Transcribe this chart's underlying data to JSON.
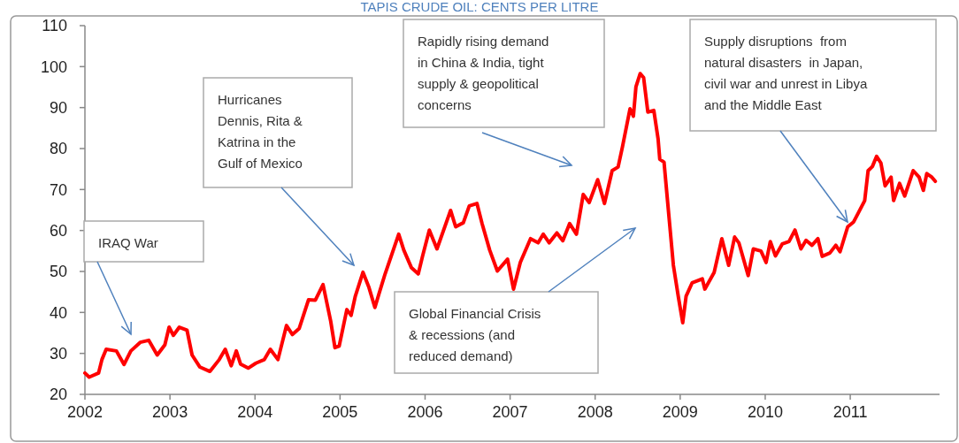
{
  "chart_data": {
    "type": "line",
    "title": "TAPIS CRUDE OIL: CENTS PER LITRE",
    "xlim": [
      2002,
      2012.05
    ],
    "xticks": [
      2002,
      2003,
      2004,
      2005,
      2006,
      2007,
      2008,
      2009,
      2010,
      2011
    ],
    "ylim": [
      20,
      110
    ],
    "yticks": [
      20,
      30,
      40,
      50,
      60,
      70,
      80,
      90,
      100,
      110
    ],
    "grid": false,
    "series": [
      {
        "color": "#ff0000",
        "x": [
          2002.0,
          2002.05,
          2002.16,
          2002.2,
          2002.25,
          2002.37,
          2002.46,
          2002.54,
          2002.65,
          2002.75,
          2002.85,
          2002.94,
          2002.99,
          2003.04,
          2003.11,
          2003.2,
          2003.26,
          2003.35,
          2003.47,
          2003.58,
          2003.65,
          2003.72,
          2003.78,
          2003.83,
          2003.92,
          2004.01,
          2004.11,
          2004.18,
          2004.27,
          2004.37,
          2004.44,
          2004.52,
          2004.63,
          2004.71,
          2004.8,
          2004.89,
          2004.94,
          2004.99,
          2005.08,
          2005.13,
          2005.18,
          2005.27,
          2005.34,
          2005.41,
          2005.46,
          2005.53,
          2005.69,
          2005.75,
          2005.84,
          2005.92,
          2005.97,
          2006.05,
          2006.14,
          2006.3,
          2006.36,
          2006.45,
          2006.52,
          2006.61,
          2006.67,
          2006.76,
          2006.85,
          2006.97,
          2007.04,
          2007.12,
          2007.24,
          2007.33,
          2007.39,
          2007.46,
          2007.55,
          2007.62,
          2007.7,
          2007.78,
          2007.86,
          2007.93,
          2008.03,
          2008.11,
          2008.2,
          2008.27,
          2008.32,
          2008.41,
          2008.45,
          2008.48,
          2008.53,
          2008.57,
          2008.62,
          2008.69,
          2008.74,
          2008.76,
          2008.81,
          2008.92,
          2008.98,
          2009.03,
          2009.07,
          2009.14,
          2009.26,
          2009.29,
          2009.4,
          2009.49,
          2009.57,
          2009.64,
          2009.69,
          2009.8,
          2009.86,
          2009.95,
          2010.01,
          2010.06,
          2010.12,
          2010.2,
          2010.28,
          2010.35,
          2010.42,
          2010.48,
          2010.55,
          2010.62,
          2010.67,
          2010.76,
          2010.83,
          2010.88,
          2010.97,
          2011.04,
          2011.1,
          2011.17,
          2011.21,
          2011.26,
          2011.31,
          2011.36,
          2011.41,
          2011.48,
          2011.51,
          2011.58,
          2011.64,
          2011.74,
          2011.81,
          2011.86,
          2011.9,
          2011.96,
          2012.0
        ],
        "values": [
          25.2,
          24.2,
          25.2,
          28.5,
          31,
          30.6,
          27.3,
          30.6,
          32.7,
          33.2,
          29.6,
          32.1,
          36.4,
          34.4,
          36.4,
          35.7,
          29.6,
          26.7,
          25.6,
          28.5,
          31,
          27,
          30.6,
          27.4,
          26.4,
          27.6,
          28.5,
          31,
          28.5,
          36.8,
          34.6,
          36.1,
          43.1,
          43,
          46.8,
          37.9,
          31.4,
          31.8,
          40.7,
          39.3,
          44,
          49.8,
          46.1,
          41.2,
          44.7,
          49.4,
          59.1,
          55.2,
          50.9,
          49.4,
          53.7,
          60.1,
          55.5,
          64.9,
          60.9,
          61.9,
          66,
          66.6,
          61.7,
          55.2,
          50.1,
          53,
          45.7,
          52.2,
          58,
          57,
          59.1,
          57,
          59.4,
          57.5,
          61.7,
          59.1,
          68.8,
          66.8,
          72.4,
          66.6,
          74.6,
          75.5,
          80.3,
          89.7,
          87.9,
          95.1,
          98.3,
          97.3,
          88.9,
          89.3,
          82.4,
          77.4,
          76.7,
          51.5,
          43.6,
          37.5,
          44,
          47.2,
          48.2,
          45.7,
          49.8,
          58,
          51.5,
          58.4,
          57,
          49,
          55.5,
          55,
          52.2,
          57.3,
          53.8,
          56.7,
          57.3,
          60.1,
          55.5,
          57.6,
          56.4,
          58,
          53.7,
          54.5,
          56.4,
          54.8,
          60.9,
          62.1,
          64.5,
          67.3,
          74.6,
          75.6,
          78.1,
          76.5,
          70.9,
          73,
          67.3,
          71.5,
          68.4,
          74.6,
          73,
          69.8,
          73.9,
          73,
          72
        ]
      }
    ],
    "annotations": [
      "IRAQ War",
      "Hurricanes\nDennis, Rita &\nKatrina in the\nGulf of Mexico",
      "Rapidly rising demand\nin China & India, tight\nsupply & geopolitical\nconcerns",
      "Global Financial Crisis\n& recessions (and\nreduced demand)",
      "Supply disruptions  from\nnatural disasters  in Japan,\ncivil war and unrest in Libya\nand the Middle East"
    ]
  }
}
